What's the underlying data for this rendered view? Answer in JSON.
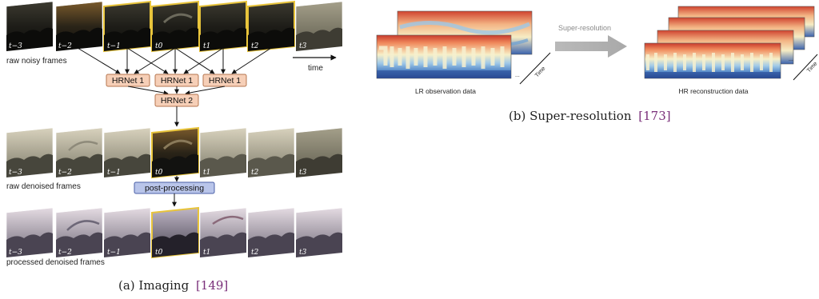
{
  "imaging": {
    "caption": "(a) Imaging",
    "caption_ref": "[149]",
    "rows": {
      "noisy": "raw noisy frames",
      "denoised": "raw denoised frames",
      "processed": "processed denoised frames"
    },
    "time_label": "time",
    "frame_labels": [
      "t−3",
      "t−2",
      "t−1",
      "t0",
      "t1",
      "t2",
      "t3"
    ],
    "nets": {
      "hrnet1": "HRNet 1",
      "hrnet2": "HRNet 2",
      "post": "post-processing"
    },
    "colors": {
      "net_fill": "#f6cfb7",
      "net_stroke": "#b5764f",
      "post_fill": "#b9c5ea",
      "post_stroke": "#4a5fa7",
      "highlight": "#e8c43b"
    }
  },
  "superres": {
    "caption": "(b) Super-resolution",
    "caption_ref": "[173]",
    "arrow_label": "Super-resolution",
    "lr_label": "LR observation data",
    "hr_label": "HR reconstruction data",
    "time_axis": "Time",
    "ellipsis": "..."
  }
}
